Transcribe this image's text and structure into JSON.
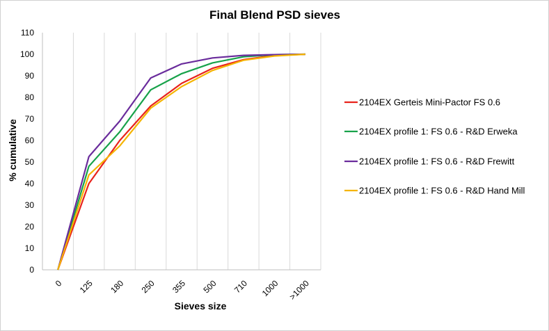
{
  "chart_data": {
    "type": "line",
    "title": "Final Blend PSD sieves",
    "xlabel": "Sieves size",
    "ylabel": "% cumulative",
    "categories": [
      "0",
      "125",
      "180",
      "250",
      "355",
      "500",
      "710",
      "1000",
      ">1000"
    ],
    "ylim": [
      0,
      110
    ],
    "yticks": [
      0,
      10,
      20,
      30,
      40,
      50,
      60,
      70,
      80,
      90,
      100,
      110
    ],
    "grid": "vertical",
    "legend_position": "right",
    "series": [
      {
        "name": "2104EX Gerteis Mini-Pactor FS 0.6",
        "color": "#e8231c",
        "values": [
          0,
          40,
          60,
          76,
          86.5,
          93.5,
          97.5,
          99.5,
          100
        ]
      },
      {
        "name": "2104EX profile 1: FS 0.6 - R&D Erweka",
        "color": "#17a24a",
        "values": [
          0,
          48,
          64,
          83.5,
          91,
          96,
          98.8,
          99.8,
          100
        ]
      },
      {
        "name": "2104EX profile 1: FS 0.6 - R&D Frewitt",
        "color": "#6a2c9c",
        "values": [
          0,
          52.5,
          69,
          89,
          95.5,
          98.3,
          99.5,
          99.8,
          100
        ]
      },
      {
        "name": "2104EX profile 1: FS 0.6 - R&D Hand Mill",
        "color": "#f5b400",
        "values": [
          0,
          44,
          57.5,
          75,
          85,
          92.5,
          97.2,
          99.2,
          100
        ]
      }
    ]
  }
}
